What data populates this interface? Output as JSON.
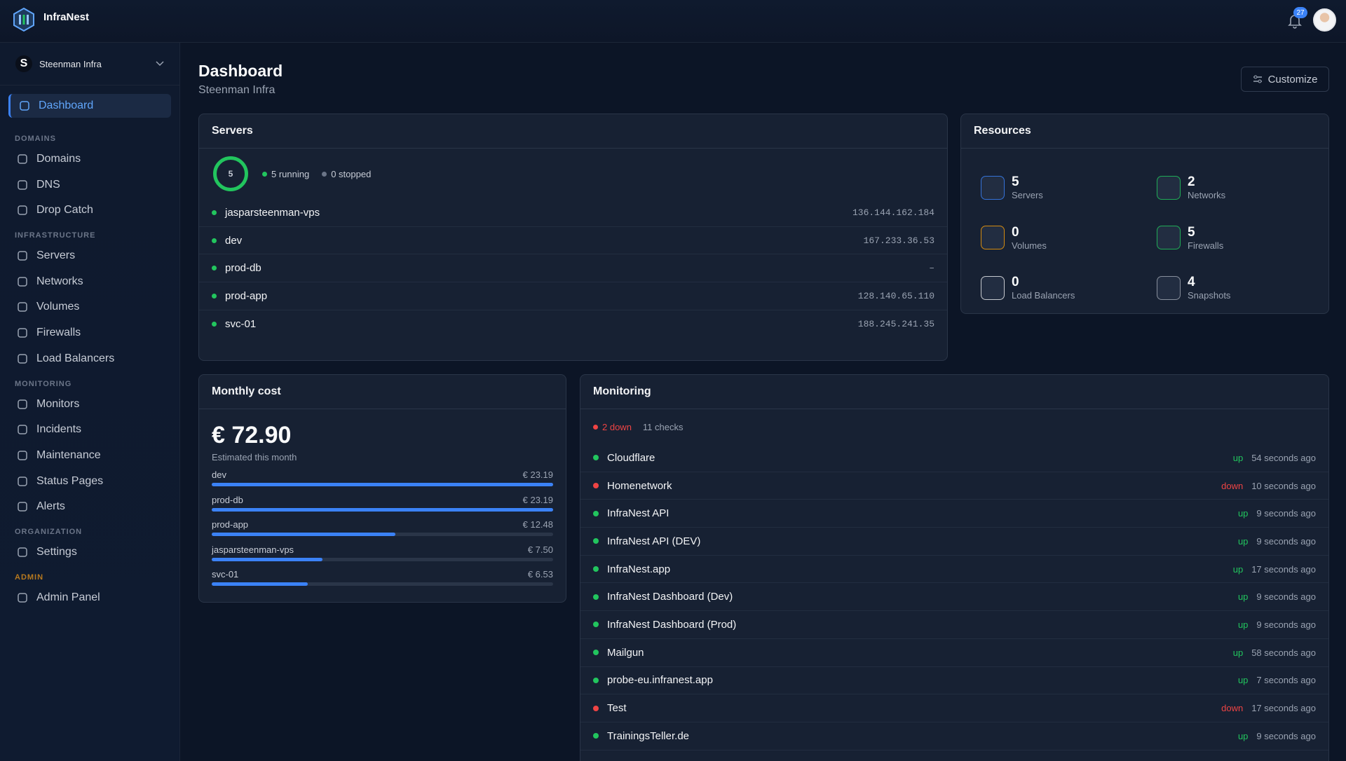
{
  "brand": "InfraNest",
  "notifications": 27,
  "org": "Steenman Infra",
  "nav": {
    "main": [
      "Dashboard"
    ],
    "sections": [
      {
        "title": "DOMAINS",
        "items": [
          "Domains",
          "DNS",
          "Drop Catch"
        ]
      },
      {
        "title": "INFRASTRUCTURE",
        "items": [
          "Servers",
          "Networks",
          "Volumes",
          "Firewalls",
          "Load Balancers"
        ]
      },
      {
        "title": "MONITORING",
        "items": [
          "Monitors",
          "Incidents",
          "Maintenance",
          "Status Pages",
          "Alerts"
        ]
      },
      {
        "title": "ORGANIZATION",
        "items": [
          "Settings"
        ]
      },
      {
        "title": "ADMIN",
        "items": [
          "Admin Panel"
        ]
      }
    ]
  },
  "page": {
    "title": "Dashboard",
    "subtitle": "Steenman Infra",
    "action": "Customize"
  },
  "servers": {
    "title": "Servers",
    "total": 5,
    "running": "5 running",
    "stopped": "0 stopped",
    "rows": [
      {
        "name": "jasparsteenman-vps",
        "ip": "136.144.162.184"
      },
      {
        "name": "dev",
        "ip": "167.233.36.53"
      },
      {
        "name": "prod-db",
        "ip": "–"
      },
      {
        "name": "prod-app",
        "ip": "128.140.65.110"
      },
      {
        "name": "svc-01",
        "ip": "188.245.241.35"
      }
    ]
  },
  "resources": {
    "title": "Resources",
    "items": [
      {
        "value": 5,
        "label": "Servers",
        "color": "#3b82f6"
      },
      {
        "value": 2,
        "label": "Networks",
        "color": "#22c55e"
      },
      {
        "value": 0,
        "label": "Volumes",
        "color": "#f59e0b"
      },
      {
        "value": 5,
        "label": "Firewalls",
        "color": "#22c55e"
      },
      {
        "value": 0,
        "label": "Load Balancers",
        "color": "#e5e7eb"
      },
      {
        "value": 4,
        "label": "Snapshots",
        "color": "#9ca3af"
      }
    ]
  },
  "cost": {
    "title": "Monthly cost",
    "total": "€ 72.90",
    "note": "Estimated this month",
    "rows": [
      {
        "name": "dev",
        "value": 23.19,
        "label": "€ 23.19"
      },
      {
        "name": "prod-db",
        "value": 23.19,
        "label": "€ 23.19"
      },
      {
        "name": "prod-app",
        "value": 12.48,
        "label": "€ 12.48"
      },
      {
        "name": "jasparsteenman-vps",
        "value": 7.5,
        "label": "€ 7.50"
      },
      {
        "name": "svc-01",
        "value": 6.53,
        "label": "€ 6.53"
      }
    ]
  },
  "monitoring": {
    "title": "Monitoring",
    "down": "2 down",
    "checks": "11 checks",
    "rows": [
      {
        "name": "Cloudflare",
        "status": "up",
        "ago": "54 seconds ago"
      },
      {
        "name": "Homenetwork",
        "status": "down",
        "ago": "10 seconds ago"
      },
      {
        "name": "InfraNest API",
        "status": "up",
        "ago": "9 seconds ago"
      },
      {
        "name": "InfraNest API (DEV)",
        "status": "up",
        "ago": "9 seconds ago"
      },
      {
        "name": "InfraNest.app",
        "status": "up",
        "ago": "17 seconds ago"
      },
      {
        "name": "InfraNest Dashboard (Dev)",
        "status": "up",
        "ago": "9 seconds ago"
      },
      {
        "name": "InfraNest Dashboard (Prod)",
        "status": "up",
        "ago": "9 seconds ago"
      },
      {
        "name": "Mailgun",
        "status": "up",
        "ago": "58 seconds ago"
      },
      {
        "name": "probe-eu.infranest.app",
        "status": "up",
        "ago": "7 seconds ago"
      },
      {
        "name": "Test",
        "status": "down",
        "ago": "17 seconds ago"
      },
      {
        "name": "TrainingsTeller.de",
        "status": "up",
        "ago": "9 seconds ago"
      }
    ]
  }
}
